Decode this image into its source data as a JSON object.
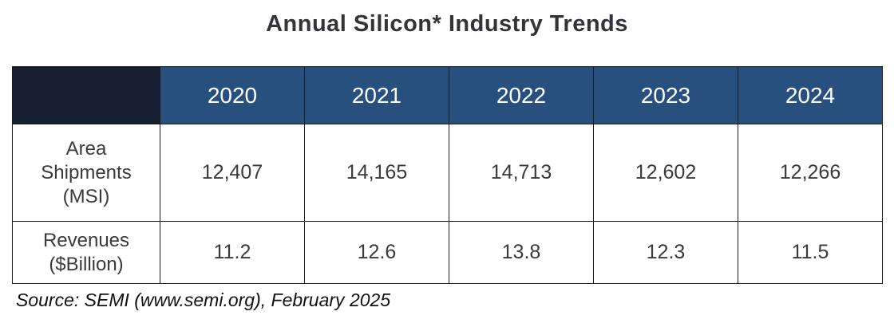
{
  "title": "Annual Silicon* Industry Trends",
  "colors": {
    "header_bg": "#27507f",
    "corner_bg": "#161e31"
  },
  "chart_data": {
    "type": "table",
    "title": "Annual Silicon* Industry Trends",
    "columns": [
      "2020",
      "2021",
      "2022",
      "2023",
      "2024"
    ],
    "rows": [
      {
        "label": "Area\nShipments\n(MSI)",
        "values": [
          "12,407",
          "14,165",
          "14,713",
          "12,602",
          "12,266"
        ]
      },
      {
        "label": "Revenues\n($Billion)",
        "values": [
          "11.2",
          "12.6",
          "13.8",
          "12.3",
          "11.5"
        ]
      }
    ],
    "source": "Source: SEMI (www.semi.org), February 2025"
  }
}
